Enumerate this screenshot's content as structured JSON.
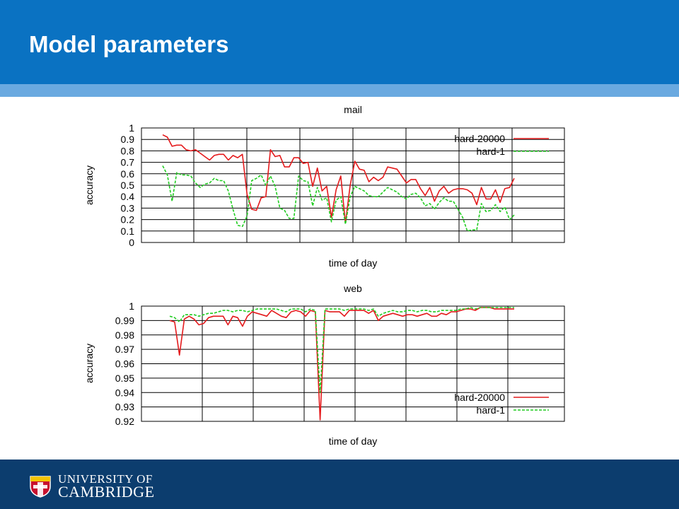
{
  "header": {
    "title": "Model parameters"
  },
  "footer": {
    "university_line1": "UNIVERSITY OF",
    "university_line2": "CAMBRIDGE"
  },
  "colors": {
    "header_bg": "#0a72c2",
    "stripe": "#6aa9e0",
    "footer_bg": "#0c3d6e",
    "series_red": "#e41a1c",
    "series_green": "#22cc22"
  },
  "chart_data": [
    {
      "type": "line",
      "title": "mail",
      "xlabel": "time of day",
      "ylabel": "accuracy",
      "ylim": [
        0,
        1
      ],
      "y_ticks": [
        "0",
        "0.1",
        "0.2",
        "0.3",
        "0.4",
        "0.5",
        "0.6",
        "0.7",
        "0.8",
        "0.9",
        "1"
      ],
      "legend_position": "top-right",
      "series": [
        {
          "name": "hard-20000",
          "color": "#e41a1c",
          "dash": false,
          "values": [
            0.94,
            0.92,
            0.84,
            0.85,
            0.85,
            0.81,
            0.8,
            0.81,
            0.78,
            0.75,
            0.72,
            0.76,
            0.77,
            0.77,
            0.72,
            0.76,
            0.74,
            0.77,
            0.42,
            0.29,
            0.28,
            0.39,
            0.4,
            0.81,
            0.75,
            0.76,
            0.66,
            0.66,
            0.74,
            0.74,
            0.69,
            0.7,
            0.49,
            0.65,
            0.45,
            0.49,
            0.22,
            0.46,
            0.58,
            0.17,
            0.5,
            0.71,
            0.64,
            0.63,
            0.53,
            0.57,
            0.54,
            0.57,
            0.66,
            0.65,
            0.64,
            0.58,
            0.52,
            0.55,
            0.55,
            0.47,
            0.41,
            0.48,
            0.36,
            0.45,
            0.49,
            0.43,
            0.46,
            0.47,
            0.47,
            0.46,
            0.43,
            0.33,
            0.48,
            0.38,
            0.38,
            0.46,
            0.35,
            0.47,
            0.48,
            0.56
          ]
        },
        {
          "name": "hard-1",
          "color": "#22cc22",
          "dash": true,
          "values": [
            0.67,
            0.59,
            0.36,
            0.61,
            0.59,
            0.59,
            0.58,
            0.52,
            0.48,
            0.51,
            0.52,
            0.56,
            0.54,
            0.54,
            0.45,
            0.29,
            0.15,
            0.14,
            0.23,
            0.54,
            0.56,
            0.59,
            0.5,
            0.58,
            0.49,
            0.3,
            0.28,
            0.21,
            0.21,
            0.58,
            0.54,
            0.53,
            0.32,
            0.48,
            0.37,
            0.39,
            0.18,
            0.37,
            0.4,
            0.16,
            0.4,
            0.49,
            0.47,
            0.45,
            0.41,
            0.4,
            0.4,
            0.44,
            0.48,
            0.46,
            0.44,
            0.4,
            0.38,
            0.42,
            0.43,
            0.39,
            0.32,
            0.34,
            0.29,
            0.35,
            0.39,
            0.36,
            0.36,
            0.29,
            0.22,
            0.1,
            0.11,
            0.11,
            0.34,
            0.27,
            0.28,
            0.33,
            0.27,
            0.31,
            0.2,
            0.24
          ]
        }
      ]
    },
    {
      "type": "line",
      "title": "web",
      "xlabel": "time of day",
      "ylabel": "accuracy",
      "ylim": [
        0.92,
        1
      ],
      "y_ticks": [
        "0.92",
        "0.93",
        "0.94",
        "0.95",
        "0.96",
        "0.97",
        "0.98",
        "0.99",
        "1"
      ],
      "legend_position": "bottom-right",
      "series": [
        {
          "name": "hard-20000",
          "color": "#e41a1c",
          "dash": false,
          "values": [
            0.99,
            0.989,
            0.966,
            0.991,
            0.993,
            0.991,
            0.987,
            0.988,
            0.992,
            0.993,
            0.993,
            0.993,
            0.987,
            0.993,
            0.992,
            0.986,
            0.993,
            0.996,
            0.995,
            0.994,
            0.993,
            0.997,
            0.995,
            0.993,
            0.992,
            0.996,
            0.997,
            0.996,
            0.993,
            0.997,
            0.996,
            0.921,
            0.997,
            0.996,
            0.996,
            0.996,
            0.993,
            0.997,
            0.997,
            0.997,
            0.997,
            0.995,
            0.997,
            0.99,
            0.993,
            0.994,
            0.995,
            0.994,
            0.993,
            0.994,
            0.994,
            0.993,
            0.994,
            0.995,
            0.993,
            0.993,
            0.995,
            0.994,
            0.996,
            0.996,
            0.997,
            0.998,
            0.998,
            0.997,
            0.999,
            0.999,
            0.999,
            0.998,
            0.998,
            0.998,
            0.998,
            0.998
          ]
        },
        {
          "name": "hard-1",
          "color": "#22cc22",
          "dash": true,
          "values": [
            0.993,
            0.992,
            0.989,
            0.994,
            0.994,
            0.994,
            0.993,
            0.994,
            0.995,
            0.995,
            0.996,
            0.997,
            0.997,
            0.996,
            0.997,
            0.997,
            0.996,
            0.997,
            0.998,
            0.998,
            0.998,
            0.998,
            0.998,
            0.997,
            0.996,
            0.998,
            0.998,
            0.998,
            0.996,
            0.998,
            0.997,
            0.94,
            0.998,
            0.998,
            0.998,
            0.998,
            0.997,
            0.998,
            0.998,
            0.998,
            0.998,
            0.997,
            0.998,
            0.993,
            0.995,
            0.996,
            0.997,
            0.996,
            0.996,
            0.997,
            0.997,
            0.996,
            0.997,
            0.997,
            0.996,
            0.996,
            0.997,
            0.997,
            0.997,
            0.997,
            0.998,
            0.998,
            0.999,
            0.998,
            0.999,
            0.999,
            0.999,
            0.999,
            0.999,
            0.999,
            0.999,
            0.999
          ]
        }
      ]
    }
  ]
}
